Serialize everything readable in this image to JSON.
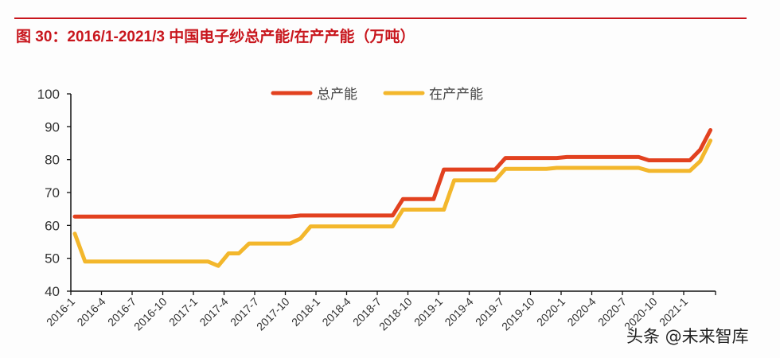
{
  "title": "图 30：2016/1-2021/3 中国电子纱总产能/在产产能（万吨）",
  "watermark": "头条 @未来智库",
  "colors": {
    "title": "#c8161d",
    "total": "#e2411f",
    "active": "#f3b72c"
  },
  "chart_data": {
    "type": "line",
    "title": "图 30：2016/1-2021/3 中国电子纱总产能/在产产能（万吨）",
    "xlabel": "",
    "ylabel": "",
    "ylim": [
      40,
      100
    ],
    "yticks": [
      40,
      50,
      60,
      70,
      80,
      90,
      100
    ],
    "xtick_labels": [
      "2016-1",
      "2016-4",
      "2016-7",
      "2016-10",
      "2017-1",
      "2017-4",
      "2017-7",
      "2017-10",
      "2018-1",
      "2018-4",
      "2018-7",
      "2018-10",
      "2019-1",
      "2019-4",
      "2019-7",
      "2019-10",
      "2020-1",
      "2020-4",
      "2020-7",
      "2020-10",
      "2021-1"
    ],
    "legend": [
      "总产能",
      "在产产能"
    ],
    "legend_position": "top-center",
    "grid": false,
    "x": [
      "2016-1",
      "2016-2",
      "2016-3",
      "2016-4",
      "2016-5",
      "2016-6",
      "2016-7",
      "2016-8",
      "2016-9",
      "2016-10",
      "2016-11",
      "2016-12",
      "2017-1",
      "2017-2",
      "2017-3",
      "2017-4",
      "2017-5",
      "2017-6",
      "2017-7",
      "2017-8",
      "2017-9",
      "2017-10",
      "2017-11",
      "2017-12",
      "2018-1",
      "2018-2",
      "2018-3",
      "2018-4",
      "2018-5",
      "2018-6",
      "2018-7",
      "2018-8",
      "2018-9",
      "2018-10",
      "2018-11",
      "2018-12",
      "2019-1",
      "2019-2",
      "2019-3",
      "2019-4",
      "2019-5",
      "2019-6",
      "2019-7",
      "2019-8",
      "2019-9",
      "2019-10",
      "2019-11",
      "2019-12",
      "2020-1",
      "2020-2",
      "2020-3",
      "2020-4",
      "2020-5",
      "2020-6",
      "2020-7",
      "2020-8",
      "2020-9",
      "2020-10",
      "2020-11",
      "2020-12",
      "2021-1",
      "2021-2",
      "2021-3"
    ],
    "series": [
      {
        "name": "总产能",
        "values": [
          62.7,
          62.7,
          62.7,
          62.7,
          62.7,
          62.7,
          62.7,
          62.7,
          62.7,
          62.7,
          62.7,
          62.7,
          62.7,
          62.7,
          62.7,
          62.7,
          62.7,
          62.7,
          62.7,
          62.7,
          62.7,
          62.7,
          63.0,
          63.0,
          63.0,
          63.0,
          63.0,
          63.0,
          63.0,
          63.0,
          63.0,
          63.0,
          68.0,
          68.0,
          68.0,
          68.0,
          77.0,
          77.0,
          77.0,
          77.0,
          77.0,
          77.0,
          80.5,
          80.5,
          80.5,
          80.5,
          80.5,
          80.5,
          80.8,
          80.8,
          80.8,
          80.8,
          80.8,
          80.8,
          80.8,
          80.8,
          79.8,
          79.8,
          79.8,
          79.8,
          79.8,
          83.0,
          89.0
        ]
      },
      {
        "name": "在产产能",
        "values": [
          57.5,
          49.0,
          49.0,
          49.0,
          49.0,
          49.0,
          49.0,
          49.0,
          49.0,
          49.0,
          49.0,
          49.0,
          49.0,
          49.0,
          47.7,
          51.5,
          51.5,
          54.5,
          54.5,
          54.5,
          54.5,
          54.5,
          56.0,
          59.7,
          59.7,
          59.7,
          59.7,
          59.7,
          59.7,
          59.7,
          59.7,
          59.7,
          64.8,
          64.8,
          64.8,
          64.8,
          64.8,
          73.7,
          73.7,
          73.7,
          73.7,
          73.7,
          77.2,
          77.2,
          77.2,
          77.2,
          77.2,
          77.5,
          77.5,
          77.5,
          77.5,
          77.5,
          77.5,
          77.5,
          77.5,
          77.5,
          76.6,
          76.6,
          76.6,
          76.6,
          76.6,
          79.5,
          85.8
        ]
      }
    ]
  }
}
